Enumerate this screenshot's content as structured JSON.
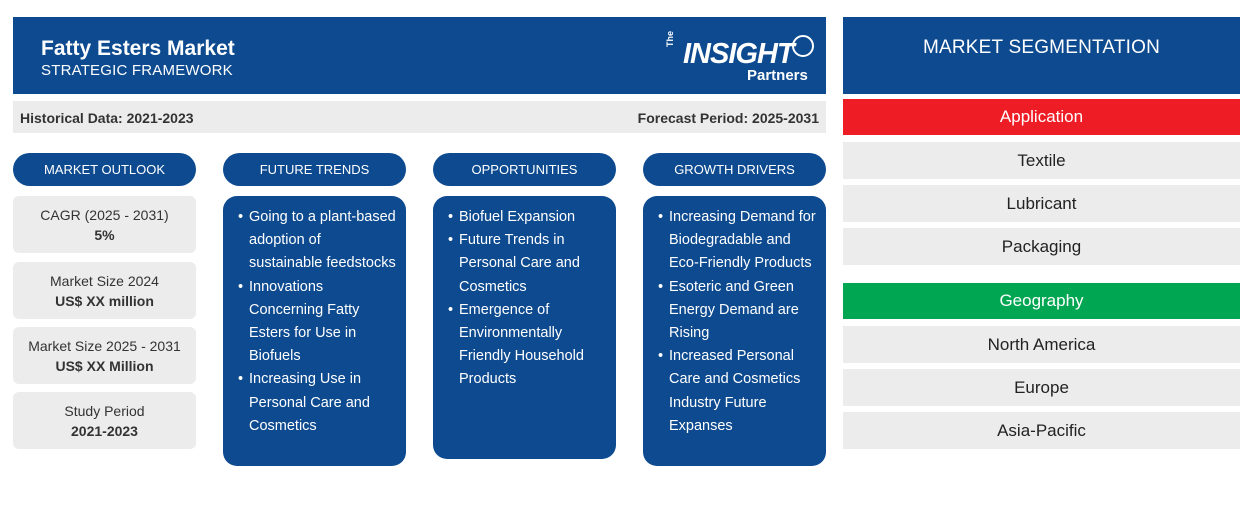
{
  "header": {
    "title": "Fatty Esters Market",
    "subtitle": "STRATEGIC FRAMEWORK",
    "logo": {
      "the": "The",
      "insight": "INSIGHT",
      "partners": "Partners"
    }
  },
  "periods": {
    "historical": "Historical Data: 2021-2023",
    "forecast": "Forecast Period: 2025-2031"
  },
  "market_outlook": {
    "heading": "MARKET OUTLOOK",
    "items": [
      {
        "label": "CAGR (2025 - 2031)",
        "value": "5%"
      },
      {
        "label": "Market Size 2024",
        "value": "US$ XX million"
      },
      {
        "label": "Market Size 2025 - 2031",
        "value": "US$ XX Million"
      },
      {
        "label": "Study Period",
        "value": "2021-2023"
      }
    ]
  },
  "future_trends": {
    "heading": "FUTURE TRENDS",
    "items": [
      "Going to a plant-based adoption of sustainable feedstocks",
      "Innovations Concerning Fatty Esters for Use in Biofuels",
      "Increasing Use in Personal Care and Cosmetics"
    ]
  },
  "opportunities": {
    "heading": "OPPORTUNITIES",
    "items": [
      "Biofuel Expansion",
      "Future Trends in Personal Care and Cosmetics",
      "Emergence of Environmentally Friendly Household Products"
    ]
  },
  "growth_drivers": {
    "heading": "GROWTH DRIVERS",
    "items": [
      "Increasing Demand for Biodegradable and Eco-Friendly Products",
      "Esoteric and Green Energy Demand are Rising",
      "Increased Personal Care and Cosmetics Industry Future Expanses"
    ]
  },
  "segmentation": {
    "heading": "MARKET SEGMENTATION",
    "application": {
      "label": "Application",
      "color": "#ee1c25",
      "items": [
        "Textile",
        "Lubricant",
        "Packaging"
      ]
    },
    "geography": {
      "label": "Geography",
      "color": "#00a651",
      "items": [
        "North America",
        "Europe",
        "Asia-Pacific"
      ]
    }
  },
  "colors": {
    "primary": "#0d4a8f",
    "panel": "#ececec"
  }
}
